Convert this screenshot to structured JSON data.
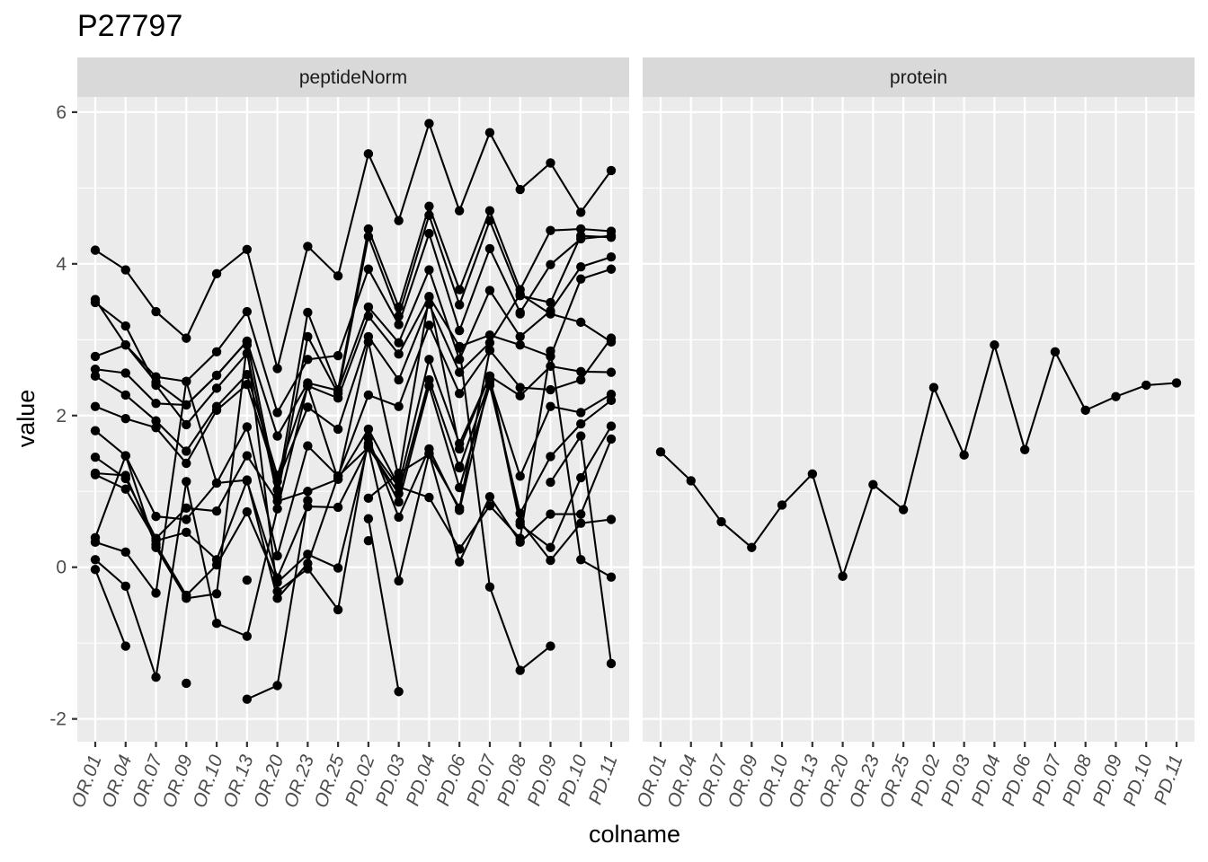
{
  "chart_data": {
    "type": "line",
    "title": "P27797",
    "xlabel": "colname",
    "ylabel": "value",
    "ylim": [
      -2.3,
      6.2
    ],
    "yticks": [
      -2,
      0,
      2,
      4,
      6
    ],
    "x": [
      "OR.01",
      "OR.04",
      "OR.07",
      "OR.09",
      "OR.10",
      "OR.13",
      "OR.20",
      "OR.23",
      "OR.25",
      "PD.02",
      "PD.03",
      "PD.04",
      "PD.06",
      "PD.07",
      "PD.08",
      "PD.09",
      "PD.10",
      "PD.11"
    ],
    "grid": true,
    "legend": "none",
    "panels": [
      {
        "name": "peptideNorm",
        "series": [
          {
            "values": [
              4.18,
              3.92,
              3.37,
              3.02,
              3.87,
              4.19,
              2.62,
              4.23,
              3.84,
              5.45,
              4.57,
              5.85,
              4.7,
              5.73,
              4.98,
              5.33,
              4.68,
              5.23
            ]
          },
          {
            "values": [
              3.53,
              2.93,
              2.44,
              2.14,
              2.53,
              2.98,
              1.02,
              3.36,
              2.34,
              4.46,
              3.43,
              4.76,
              3.66,
              4.7,
              3.66,
              4.44,
              4.46,
              4.43
            ]
          },
          {
            "values": [
              3.49,
              3.18,
              2.4,
              1.88,
              2.36,
              2.82,
              0.93,
              3.04,
              2.29,
              4.36,
              3.31,
              4.64,
              3.46,
              4.57,
              3.58,
              3.49,
              4.37,
              4.35
            ]
          },
          {
            "values": [
              2.78,
              2.93,
              2.51,
              2.45,
              2.84,
              3.37,
              2.04,
              2.74,
              2.79,
              3.93,
              3.2,
              4.4,
              3.12,
              4.2,
              3.36,
              3.99,
              4.33,
              4.37
            ]
          },
          {
            "values": [
              2.61,
              2.56,
              2.16,
              2.14,
              2.53,
              2.98,
              1.73,
              2.43,
              2.33,
              3.43,
              2.96,
              3.92,
              2.74,
              3.65,
              3.04,
              3.38,
              3.96,
              4.09
            ]
          },
          {
            "values": [
              2.52,
              2.27,
              1.93,
              1.53,
              2.12,
              2.54,
              1.21,
              2.39,
              2.23,
              3.31,
              2.81,
              3.57,
              2.91,
              3.06,
              2.93,
              2.78,
              3.8,
              3.93
            ]
          },
          {
            "values": [
              2.12,
              1.96,
              1.84,
              1.37,
              2.07,
              2.41,
              1.13,
              2.11,
              1.82,
              3.04,
              2.47,
              3.47,
              2.57,
              2.96,
              3.6,
              3.34,
              3.23,
              2.97
            ]
          },
          {
            "values": [
              1.8,
              1.47,
              0.67,
              0.63,
              1.11,
              1.85,
              0.15,
              1.6,
              1.2,
              2.27,
              2.12,
              3.19,
              2.29,
              2.86,
              2.37,
              2.34,
              2.47,
              3.02
            ]
          },
          {
            "values": [
              1.45,
              1.17,
              0.38,
              0.78,
              0.74,
              1.47,
              0.87,
              1.0,
              1.16,
              1.82,
              1.07,
              2.74,
              1.63,
              2.52,
              2.26,
              2.65,
              2.58,
              2.57
            ]
          },
          {
            "values": [
              1.22,
              1.03,
              0.35,
              0.46,
              0.1,
              1.14,
              -0.14,
              0.8,
              0.79,
              1.58,
              0.97,
              2.47,
              1.31,
              2.45,
              1.2,
              2.12,
              2.04,
              2.28
            ]
          },
          {
            "values": [
              1.24,
              1.21,
              0.3,
              -0.37,
              0.03,
              0.73,
              -0.2,
              0.17,
              -0.01,
              1.63,
              0.86,
              2.39,
              1.05,
              2.4,
              0.71,
              1.46,
              1.89,
              2.2
            ]
          },
          {
            "values": [
              0.39,
              1.47,
              0.26,
              -0.41,
              -0.35,
              2.93,
              -0.32,
              -0.02,
              -0.56,
              1.7,
              0.66,
              1.56,
              0.75,
              2.49,
              0.56,
              0.26,
              1.18,
              1.86
            ]
          },
          {
            "values": [
              0.33,
              0.2,
              -0.34,
              2.45,
              1.11,
              1.15,
              -0.41,
              0.05,
              1.2,
              1.58,
              -0.18,
              1.5,
              0.07,
              0.93,
              0.33,
              0.7,
              0.7,
              1.69
            ]
          },
          {
            "values": [
              0.1,
              -0.25,
              -1.45,
              1.13,
              -0.74,
              -0.91,
              0.77,
              2.39,
              1.16,
              2.97,
              1.18,
              3.56,
              1.56,
              2.52,
              0.6,
              0.09,
              0.58,
              0.63
            ]
          },
          {
            "values": [
              -0.03,
              -1.04,
              null,
              -1.53,
              null,
              -1.74,
              -1.56,
              0.88,
              null,
              1.6,
              1.06,
              0.92,
              0.24,
              0.81,
              0.38,
              2.85,
              0.1,
              -0.13
            ]
          },
          {
            "values": [
              null,
              null,
              null,
              null,
              null,
              -0.17,
              null,
              null,
              null,
              0.91,
              1.24,
              1.49,
              0.78,
              2.86,
              null,
              1.12,
              1.73,
              -1.27
            ]
          },
          {
            "values": [
              null,
              null,
              null,
              null,
              null,
              null,
              null,
              null,
              null,
              0.64,
              -1.64,
              null,
              2.89,
              -0.26,
              -1.36,
              -1.04,
              null,
              null
            ]
          },
          {
            "values": [
              null,
              null,
              null,
              null,
              null,
              null,
              null,
              null,
              null,
              0.35,
              null,
              null,
              1.33,
              null,
              3.34,
              null,
              null,
              null
            ]
          }
        ]
      },
      {
        "name": "protein",
        "series": [
          {
            "values": [
              1.52,
              1.14,
              0.6,
              0.26,
              0.82,
              1.23,
              -0.12,
              1.09,
              0.76,
              2.37,
              1.48,
              2.93,
              1.55,
              2.84,
              2.07,
              2.25,
              2.4,
              2.43
            ]
          }
        ]
      }
    ]
  }
}
